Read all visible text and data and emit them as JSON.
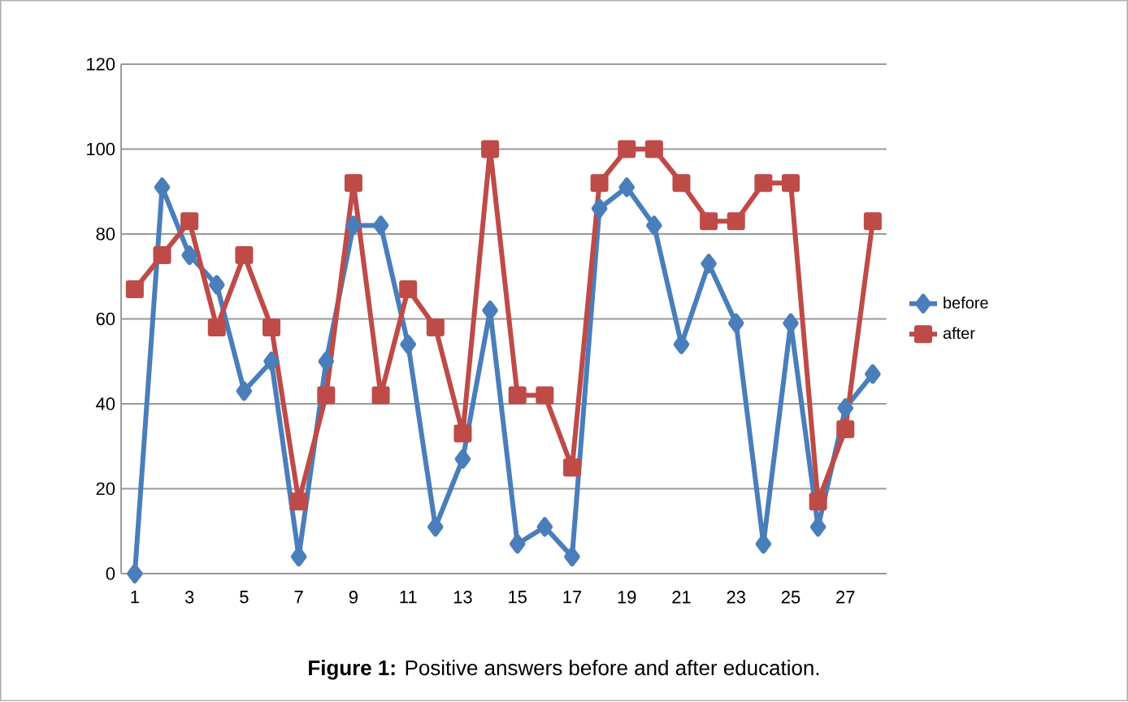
{
  "chart_data": {
    "type": "line",
    "title": "**Figure 1:** Positive answers before and after education.",
    "categories": [
      "1",
      null,
      "3",
      null,
      "5",
      null,
      "7",
      null,
      "9",
      null,
      "11",
      null,
      "13",
      null,
      "15",
      null,
      "17",
      null,
      "19",
      null,
      "21",
      null,
      "23",
      null,
      "25",
      null,
      "27",
      null
    ],
    "series": [
      {
        "name": "before",
        "color": "#4a7ebb",
        "marker": "diamond",
        "values": [
          0,
          91,
          75,
          68,
          43,
          50,
          4,
          50,
          82,
          82,
          54,
          11,
          27,
          62,
          7,
          11,
          4,
          86,
          91,
          82,
          54,
          73,
          59,
          7,
          59,
          11,
          39,
          47
        ]
      },
      {
        "name": "after",
        "color": "#be4b48",
        "marker": "square",
        "values": [
          67,
          75,
          83,
          58,
          75,
          58,
          17,
          42,
          92,
          42,
          67,
          58,
          33,
          100,
          42,
          42,
          25,
          92,
          100,
          100,
          92,
          83,
          83,
          92,
          92,
          17,
          34,
          83
        ]
      }
    ],
    "ylim": [
      0,
      120
    ],
    "yticks": [
      0,
      20,
      40,
      60,
      80,
      100,
      120
    ],
    "grid": "y",
    "legend": "right",
    "line_style": "solid"
  }
}
